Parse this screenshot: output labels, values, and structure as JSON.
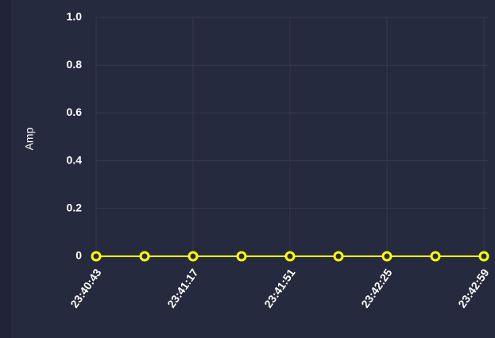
{
  "chart_data": {
    "type": "line",
    "y_label": "Amp",
    "categories": [
      "23:40:43",
      null,
      "23:41:17",
      null,
      "23:41:51",
      null,
      "23:42:25",
      null,
      "23:42:59"
    ],
    "series": [
      {
        "name": null,
        "color": "#ffff00",
        "values": [
          0,
          0,
          0,
          0,
          0,
          0,
          0,
          0,
          0
        ]
      }
    ],
    "ylim": [
      0,
      1
    ],
    "yticks": [
      0,
      0.2,
      0.4,
      0.6,
      0.8,
      {
        "value": 1,
        "label": "1.0"
      }
    ],
    "grid": true
  }
}
